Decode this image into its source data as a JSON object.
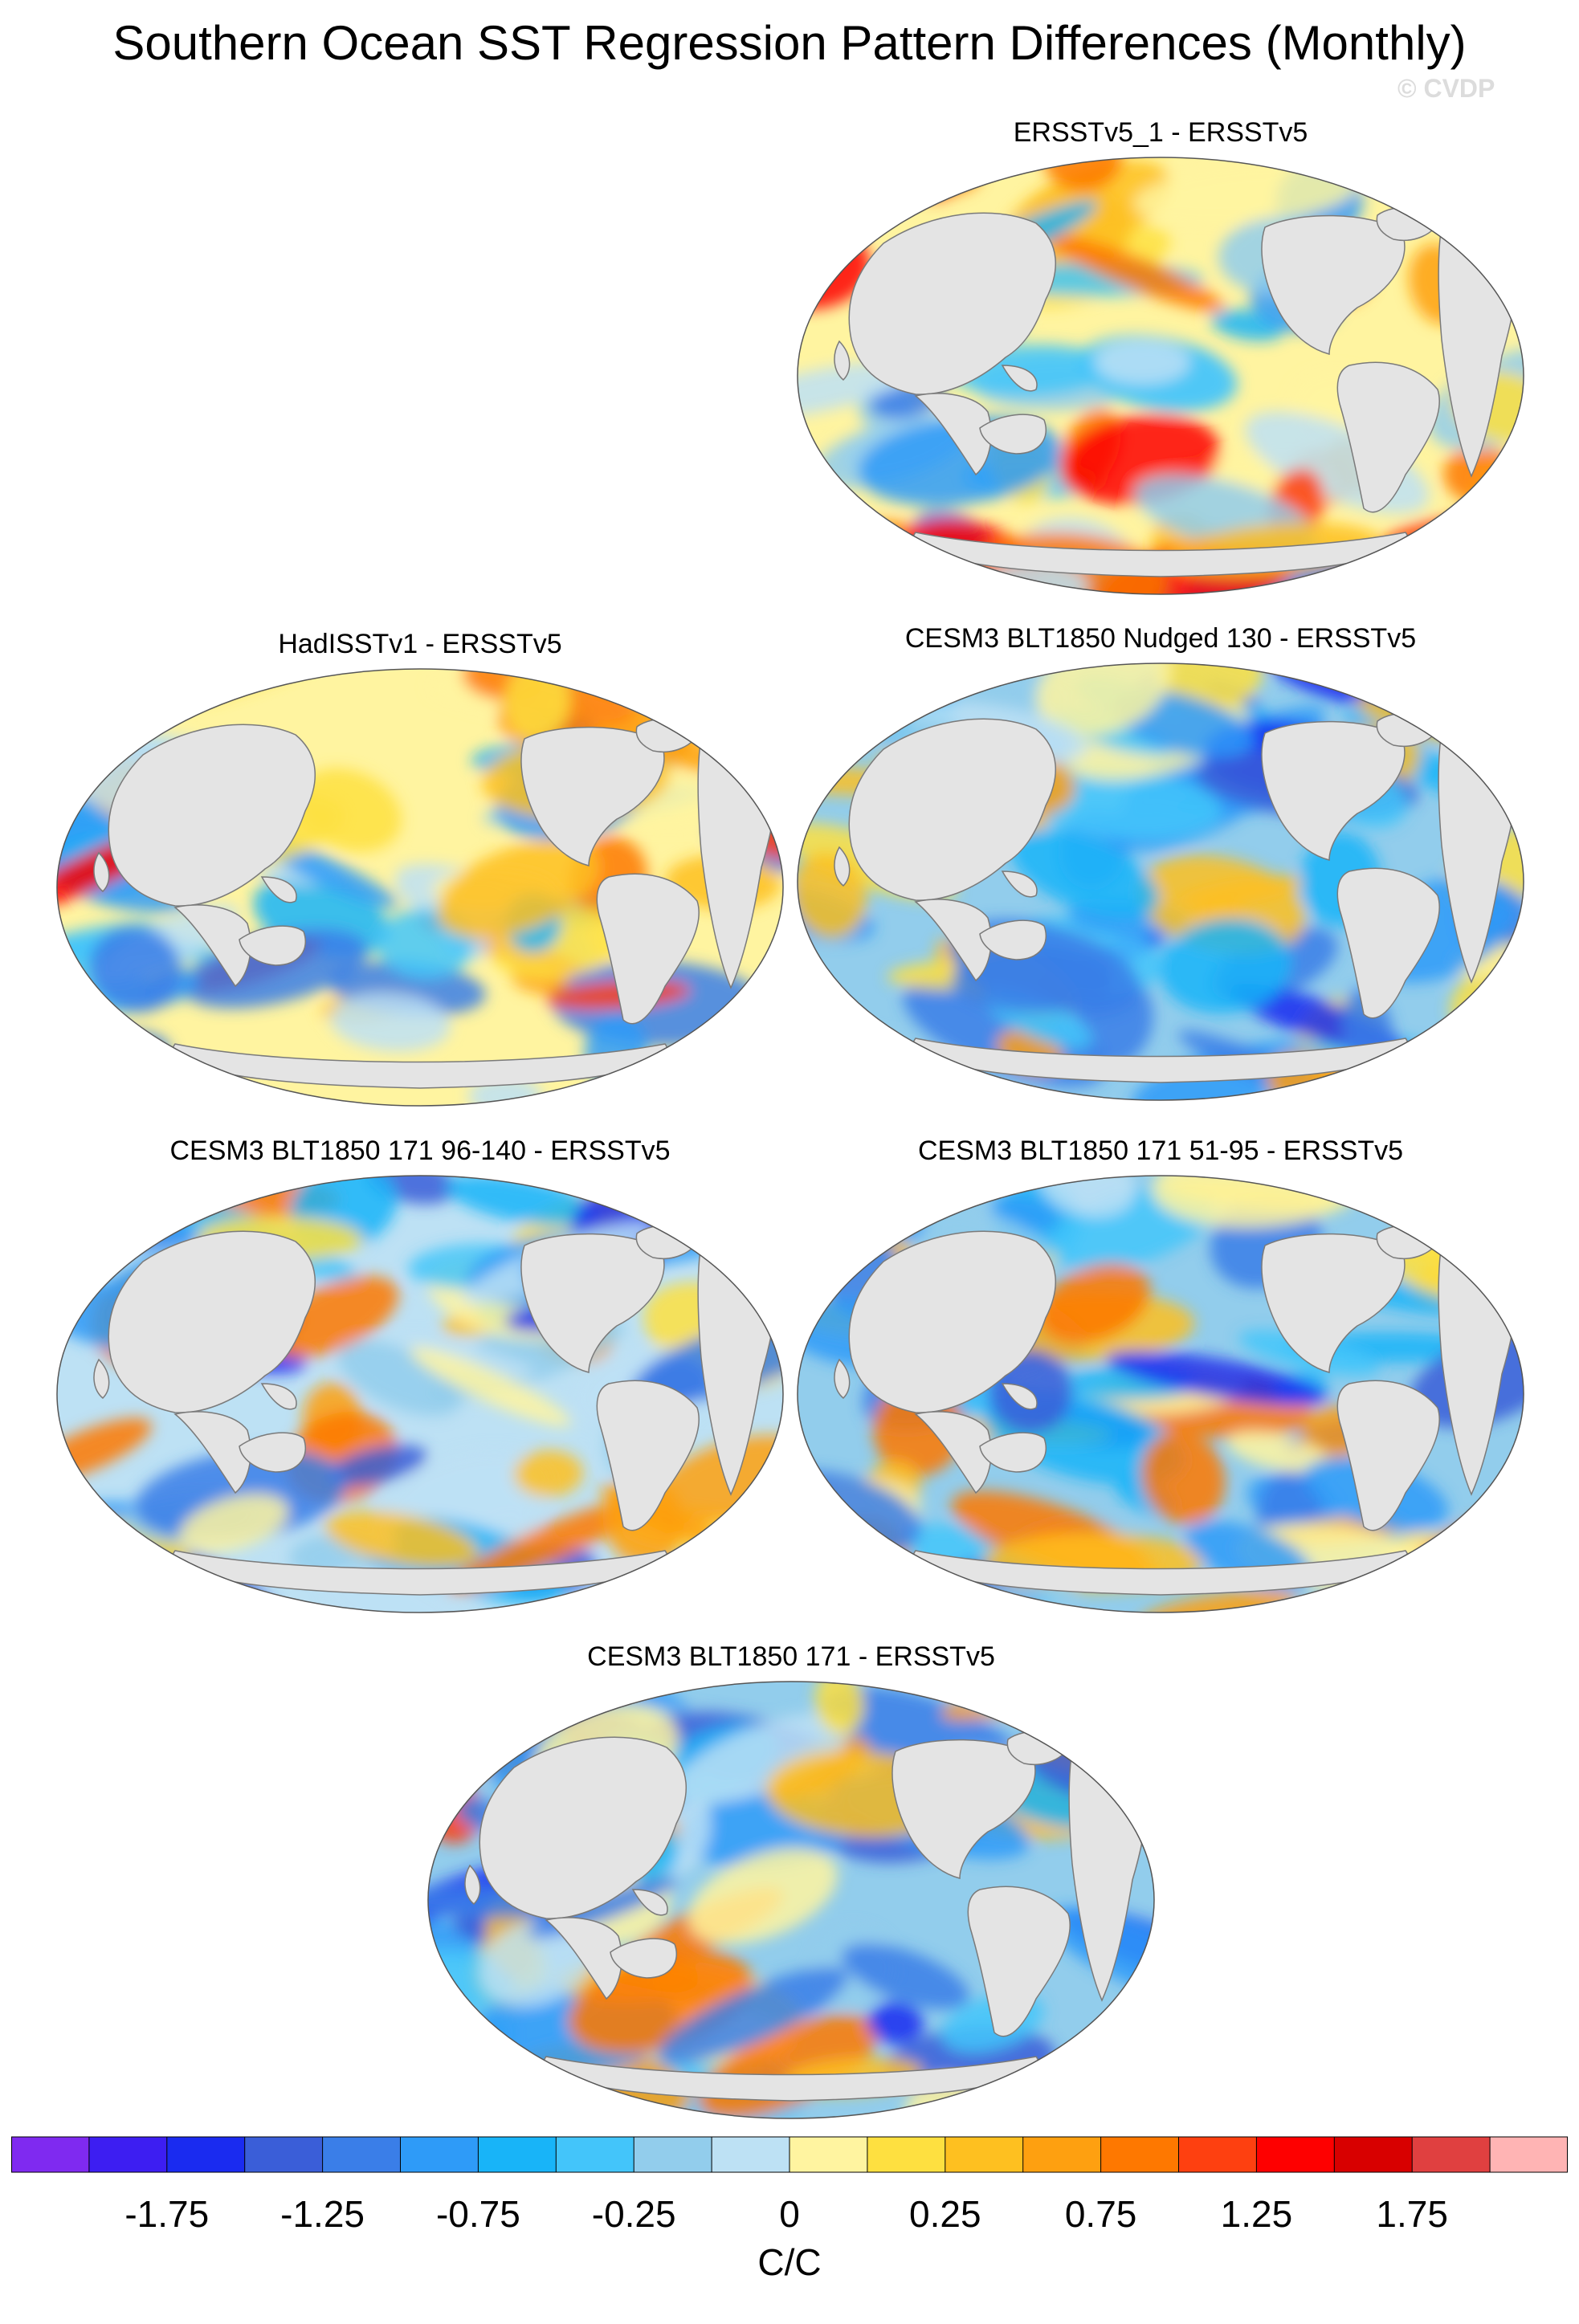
{
  "title": "Southern Ocean SST Regression Pattern Differences (Monthly)",
  "credit": "© CVDP",
  "panels": [
    {
      "title": "ERSSTv5_1 - ERSSTv5",
      "seed": 11,
      "bias": 0.45
    },
    {
      "title": "HadISSTv1 - ERSSTv5",
      "seed": 23,
      "bias": 0.25
    },
    {
      "title": "CESM3 BLT1850 Nudged 130 - ERSSTv5",
      "seed": 37,
      "bias": -0.2
    },
    {
      "title": "CESM3 BLT1850 171 96-140 - ERSSTv5",
      "seed": 41,
      "bias": 0.0
    },
    {
      "title": "CESM3 BLT1850 171 51-95 - ERSSTv5",
      "seed": 53,
      "bias": -0.15
    },
    {
      "title": "CESM3 BLT1850 171 - ERSSTv5",
      "seed": 67,
      "bias": -0.05
    }
  ],
  "colorbar": {
    "colors": [
      "#7f2af0",
      "#3d1ef2",
      "#1a2bf0",
      "#3a5ed8",
      "#3a7ee8",
      "#2e9bf8",
      "#18b4f8",
      "#43c5fa",
      "#92cdec",
      "#bde1f4",
      "#fff4a0",
      "#fee040",
      "#fec020",
      "#fea010",
      "#fe7800",
      "#fe4010",
      "#fe0000",
      "#d80000",
      "#e04040",
      "#ffb4b4"
    ],
    "labels": [
      "-1.75",
      "-1.25",
      "-0.75",
      "-0.25",
      "0",
      "0.25",
      "0.75",
      "1.25",
      "1.75"
    ],
    "units": "C/C"
  }
}
